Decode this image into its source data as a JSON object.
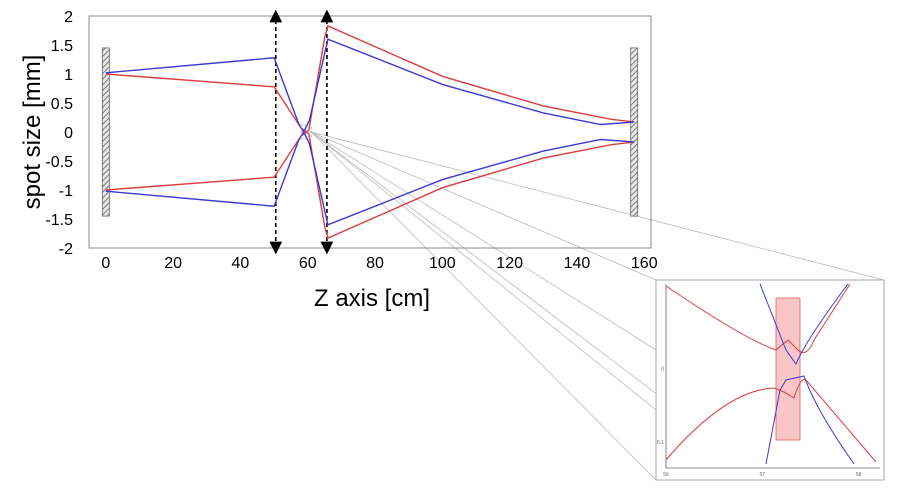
{
  "chart_data": {
    "type": "line",
    "title": "",
    "xlabel": "Z axis [cm]",
    "ylabel": "spot size [mm]",
    "xlim": [
      -5,
      162
    ],
    "ylim": [
      -2,
      2
    ],
    "x_ticks": [
      "0",
      "20",
      "40",
      "60",
      "80",
      "100",
      "120",
      "140",
      "160"
    ],
    "y_ticks": [
      "2",
      "1.5",
      "1",
      "0.5",
      "0",
      "-0.5",
      "-1",
      "-1.5",
      "-2"
    ],
    "grid": false,
    "legend": "none",
    "colors": {
      "red_series": "#e03c3c",
      "blue_series": "#3a3ad6",
      "element_hatch": "#7a7a7a",
      "inset_box": "#f08080"
    },
    "series": [
      {
        "color": "red",
        "x": [
          0,
          50,
          58,
          60.3,
          65,
          66,
          100,
          130,
          150,
          157
        ],
        "y": [
          1.0,
          0.78,
          0.07,
          -0.03,
          -1.62,
          -1.83,
          -0.96,
          -0.45,
          -0.22,
          -0.17
        ]
      },
      {
        "color": "red",
        "x": [
          0,
          50,
          58,
          60.3,
          65,
          66,
          100,
          130,
          150,
          157
        ],
        "y": [
          -1.0,
          -0.78,
          -0.07,
          0.03,
          1.62,
          1.83,
          0.96,
          0.45,
          0.22,
          0.17
        ]
      },
      {
        "color": "blue",
        "x": [
          0,
          50,
          57.3,
          58.8,
          60.5,
          66,
          100,
          130,
          147,
          157
        ],
        "y": [
          1.02,
          1.28,
          0.14,
          0.0,
          0.2,
          1.6,
          0.82,
          0.33,
          0.13,
          0.17
        ]
      },
      {
        "color": "blue",
        "x": [
          0,
          50,
          57.3,
          58.8,
          60.5,
          66,
          100,
          130,
          147,
          157
        ],
        "y": [
          -1.02,
          -1.28,
          -0.14,
          0.0,
          -0.2,
          -1.6,
          -0.82,
          -0.33,
          -0.13,
          -0.17
        ]
      }
    ],
    "optical_elements": [
      {
        "kind": "end-mirror",
        "x": 0,
        "y_range": [
          -1.45,
          1.45
        ]
      },
      {
        "kind": "end-mirror",
        "x": 157,
        "y_range": [
          -1.45,
          1.45
        ]
      },
      {
        "kind": "lens-arrow",
        "x": 50.5,
        "y_range": [
          -2,
          2
        ]
      },
      {
        "kind": "lens-arrow",
        "x": 65.7,
        "y_range": [
          -2,
          2
        ]
      }
    ],
    "zoom_region": {
      "x": [
        58,
        61
      ],
      "y": [
        -0.12,
        0.12
      ]
    },
    "inset": {
      "x_tick_labels": [
        "56",
        "57",
        "58"
      ],
      "y_tick_labels": [
        "0",
        "-0.1"
      ]
    }
  }
}
